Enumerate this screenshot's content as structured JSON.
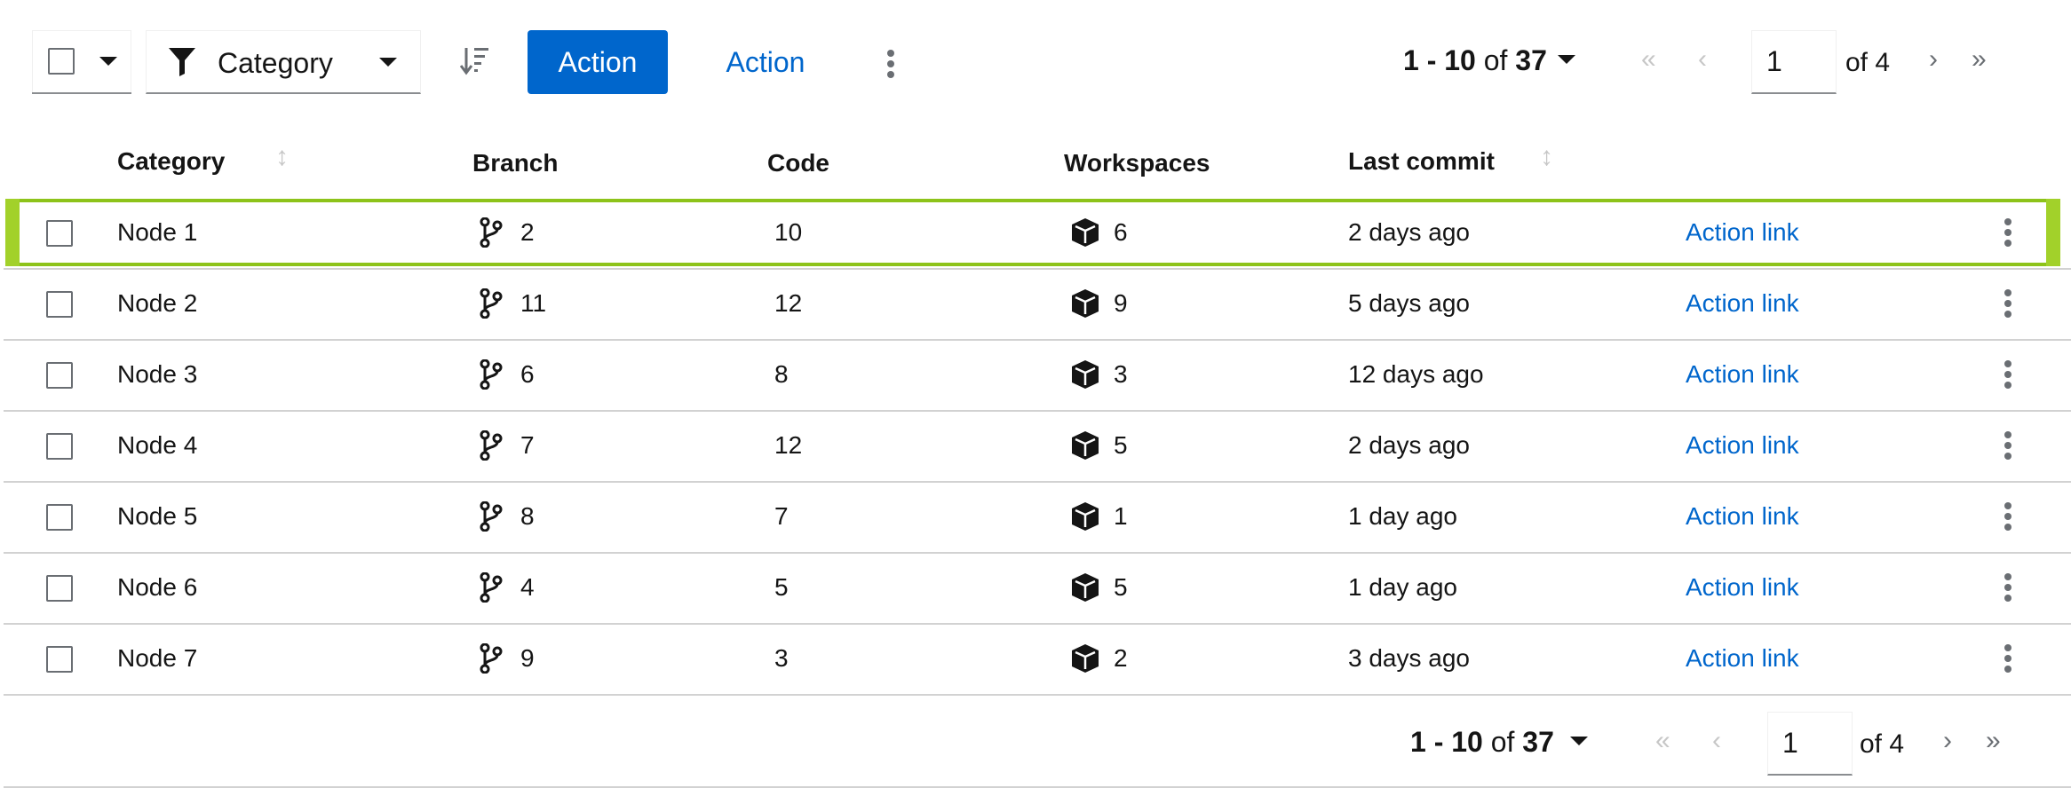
{
  "toolbar": {
    "filter_label": "Category",
    "primary_action": "Action",
    "secondary_action": "Action",
    "pagination": {
      "range_start": "1 - 10",
      "of_label": "of",
      "total": "37",
      "page": "1",
      "page_total": "of 4"
    }
  },
  "table": {
    "headers": {
      "category": "Category",
      "branch": "Branch",
      "code": "Code",
      "workspaces": "Workspaces",
      "last_commit": "Last commit"
    },
    "rows": [
      {
        "name": "Node 1",
        "branches": "2",
        "code": "10",
        "workspaces": "6",
        "last_commit": "2 days ago",
        "action": "Action link",
        "highlighted": true
      },
      {
        "name": "Node 2",
        "branches": "11",
        "code": "12",
        "workspaces": "9",
        "last_commit": "5 days ago",
        "action": "Action link"
      },
      {
        "name": "Node 3",
        "branches": "6",
        "code": "8",
        "workspaces": "3",
        "last_commit": "12 days ago",
        "action": "Action link"
      },
      {
        "name": "Node 4",
        "branches": "7",
        "code": "12",
        "workspaces": "5",
        "last_commit": "2 days ago",
        "action": "Action link"
      },
      {
        "name": "Node 5",
        "branches": "8",
        "code": "7",
        "workspaces": "1",
        "last_commit": "1 day ago",
        "action": "Action link"
      },
      {
        "name": "Node 6",
        "branches": "4",
        "code": "5",
        "workspaces": "5",
        "last_commit": "1 day ago",
        "action": "Action link"
      },
      {
        "name": "Node 7",
        "branches": "9",
        "code": "3",
        "workspaces": "2",
        "last_commit": "3 days ago",
        "action": "Action link"
      }
    ]
  },
  "footer": {
    "pagination": {
      "range_start": "1 - 10",
      "of_label": "of",
      "total": "37",
      "page": "1",
      "page_total": "of 4"
    }
  },
  "colors": {
    "primary": "#0066cc",
    "highlight": "#8dc31a",
    "border": "#d2d2d2"
  },
  "icons": [
    "chevron-down-icon",
    "filter-icon",
    "sort-icon",
    "kebab-icon",
    "angle-double-left-icon",
    "angle-left-icon",
    "angle-right-icon",
    "angle-double-right-icon",
    "code-branch-icon",
    "cube-icon"
  ]
}
